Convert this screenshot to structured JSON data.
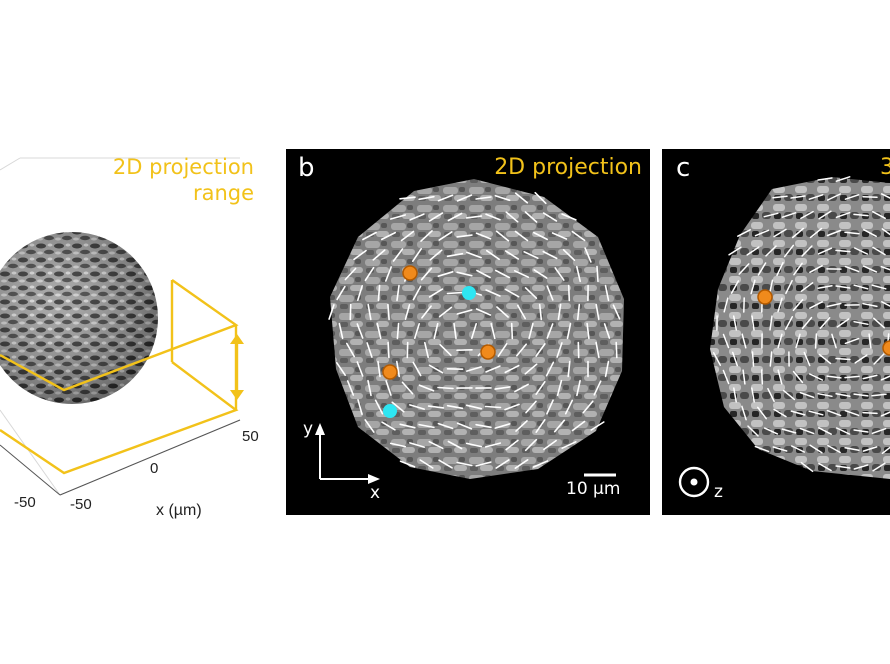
{
  "panel_a": {
    "label_line1": "2D projection",
    "label_line2": "range",
    "tick_x_50": "50",
    "tick_x_0": "0",
    "tick_x_m50": "-50",
    "tick_y_m50": "-50",
    "x_axis_label": "x (µm)"
  },
  "panel_b": {
    "letter": "b",
    "title": "2D projection",
    "y_label": "y",
    "x_label": "x",
    "scale_bar_label": "10 µm",
    "defects_orange": 3,
    "defects_cyan": 2
  },
  "panel_c": {
    "letter": "c",
    "title_fragment": "3",
    "z_label": "z",
    "defects_orange": 2
  },
  "colors": {
    "yellow": "#f2c21a",
    "orange_defect": "#f08a1c",
    "cyan_defect": "#2ee6f2",
    "panel_bg": "#000000"
  }
}
